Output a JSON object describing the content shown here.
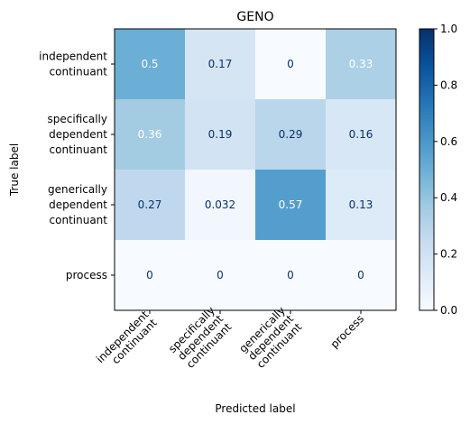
{
  "chart_data": {
    "type": "heatmap",
    "title": "GENO",
    "xlabel": "Predicted label",
    "ylabel": "True label",
    "row_labels": [
      [
        "independent",
        "continuant"
      ],
      [
        "specifically",
        "dependent",
        "continuant"
      ],
      [
        "generically",
        "dependent",
        "continuant"
      ],
      [
        "process"
      ]
    ],
    "col_labels": [
      [
        "independent",
        "continuant"
      ],
      [
        "specifically",
        "dependent",
        "continuant"
      ],
      [
        "generically",
        "dependent",
        "continuant"
      ],
      [
        "process"
      ]
    ],
    "values": [
      [
        0.5,
        0.17,
        0,
        0.33
      ],
      [
        0.36,
        0.19,
        0.29,
        0.16
      ],
      [
        0.27,
        0.032,
        0.57,
        0.13
      ],
      [
        0,
        0,
        0,
        0
      ]
    ],
    "cell_labels": [
      [
        "0.5",
        "0.17",
        "0",
        "0.33"
      ],
      [
        "0.36",
        "0.19",
        "0.29",
        "0.16"
      ],
      [
        "0.27",
        "0.032",
        "0.57",
        "0.13"
      ],
      [
        "0",
        "0",
        "0",
        "0"
      ]
    ],
    "colorbar": {
      "colormap": "Blues",
      "range": [
        0.0,
        1.0
      ],
      "ticks": [
        "0.0",
        "0.2",
        "0.4",
        "0.6",
        "0.8",
        "1.0"
      ]
    },
    "grid": false,
    "colors": {
      "low": "#f7fbff",
      "high": "#08306b",
      "text_dark": "#08306b",
      "text_light": "#ffffff"
    }
  }
}
